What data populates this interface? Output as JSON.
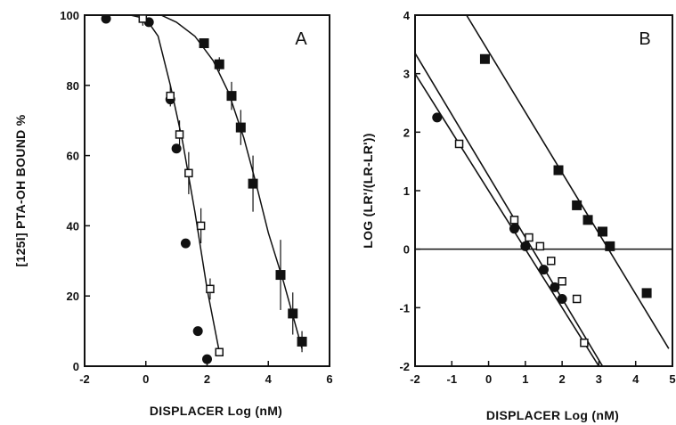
{
  "chart_data": [
    {
      "type": "scatter",
      "panel_label": "A",
      "ylabel": "[125I] PTA-OH BOUND %",
      "xlabel": "DISPLACER  Log (nM)",
      "xlim": [
        -2,
        6
      ],
      "ylim": [
        0,
        100
      ],
      "xticks": [
        "-2",
        "0",
        "2",
        "4",
        "6"
      ],
      "yticks": [
        "0",
        "20",
        "40",
        "60",
        "80",
        "100"
      ],
      "series": [
        {
          "marker": "filled-circle",
          "points": [
            [
              -1.3,
              99
            ],
            [
              0.1,
              98
            ],
            [
              0.8,
              76
            ],
            [
              1.0,
              62
            ],
            [
              1.3,
              35
            ],
            [
              1.7,
              10
            ],
            [
              2.0,
              2
            ]
          ]
        },
        {
          "marker": "open-square",
          "curve": [
            [
              -0.5,
              100
            ],
            [
              0.0,
              99
            ],
            [
              0.4,
              94
            ],
            [
              0.8,
              80
            ],
            [
              1.2,
              64
            ],
            [
              1.6,
              44
            ],
            [
              2.0,
              22
            ],
            [
              2.4,
              4
            ]
          ],
          "points": [
            [
              -0.1,
              99
            ],
            [
              0.8,
              77
            ],
            [
              1.1,
              66
            ],
            [
              1.4,
              55
            ],
            [
              1.8,
              40
            ],
            [
              2.1,
              22
            ],
            [
              2.4,
              4
            ]
          ],
          "errors": [
            2,
            3,
            4,
            6,
            5,
            3,
            1
          ]
        },
        {
          "marker": "filled-square",
          "curve": [
            [
              0.5,
              100
            ],
            [
              1.0,
              98
            ],
            [
              1.6,
              94
            ],
            [
              2.2,
              87
            ],
            [
              2.7,
              78
            ],
            [
              3.2,
              65
            ],
            [
              3.6,
              52
            ],
            [
              4.0,
              38
            ],
            [
              4.5,
              24
            ],
            [
              5.1,
              5
            ]
          ],
          "points": [
            [
              1.9,
              92
            ],
            [
              2.4,
              86
            ],
            [
              2.8,
              77
            ],
            [
              3.1,
              68
            ],
            [
              3.5,
              52
            ],
            [
              4.4,
              26
            ],
            [
              4.8,
              15
            ],
            [
              5.1,
              7
            ]
          ],
          "errors": [
            1,
            2,
            4,
            5,
            8,
            10,
            6,
            3
          ]
        }
      ]
    },
    {
      "type": "scatter",
      "panel_label": "B",
      "ylabel": "LOG (LR'/(LR-LR'))",
      "xlabel": "DISPLACER  Log (nM)",
      "xlim": [
        -2,
        5
      ],
      "ylim": [
        -2,
        4
      ],
      "xticks": [
        "-2",
        "-1",
        "0",
        "1",
        "2",
        "3",
        "4",
        "5"
      ],
      "yticks": [
        "-2",
        "-1",
        "0",
        "1",
        "2",
        "3",
        "4"
      ],
      "zero_line": 0,
      "series": [
        {
          "marker": "filled-circle",
          "points": [
            [
              -1.4,
              2.25
            ],
            [
              0.7,
              0.35
            ],
            [
              1.0,
              0.05
            ],
            [
              1.5,
              -0.35
            ],
            [
              1.8,
              -0.65
            ],
            [
              2.0,
              -0.85
            ]
          ]
        },
        {
          "marker": "open-square",
          "points": [
            [
              -0.8,
              1.8
            ],
            [
              0.7,
              0.5
            ],
            [
              1.1,
              0.2
            ],
            [
              1.4,
              0.05
            ],
            [
              1.7,
              -0.2
            ],
            [
              2.0,
              -0.55
            ],
            [
              2.4,
              -0.85
            ],
            [
              2.6,
              -1.6
            ]
          ]
        },
        {
          "marker": "filled-square",
          "points": [
            [
              -0.1,
              3.25
            ],
            [
              1.9,
              1.35
            ],
            [
              2.4,
              0.75
            ],
            [
              2.7,
              0.5
            ],
            [
              3.1,
              0.3
            ],
            [
              3.3,
              0.05
            ],
            [
              4.3,
              -0.75
            ]
          ]
        }
      ],
      "fit_lines": [
        [
          [
            -2,
            3.35
          ],
          [
            3.1,
            -2
          ]
        ],
        [
          [
            -2,
            3.0
          ],
          [
            3.0,
            -2
          ]
        ],
        [
          [
            -0.6,
            4.0
          ],
          [
            4.9,
            -1.7
          ]
        ]
      ]
    }
  ]
}
